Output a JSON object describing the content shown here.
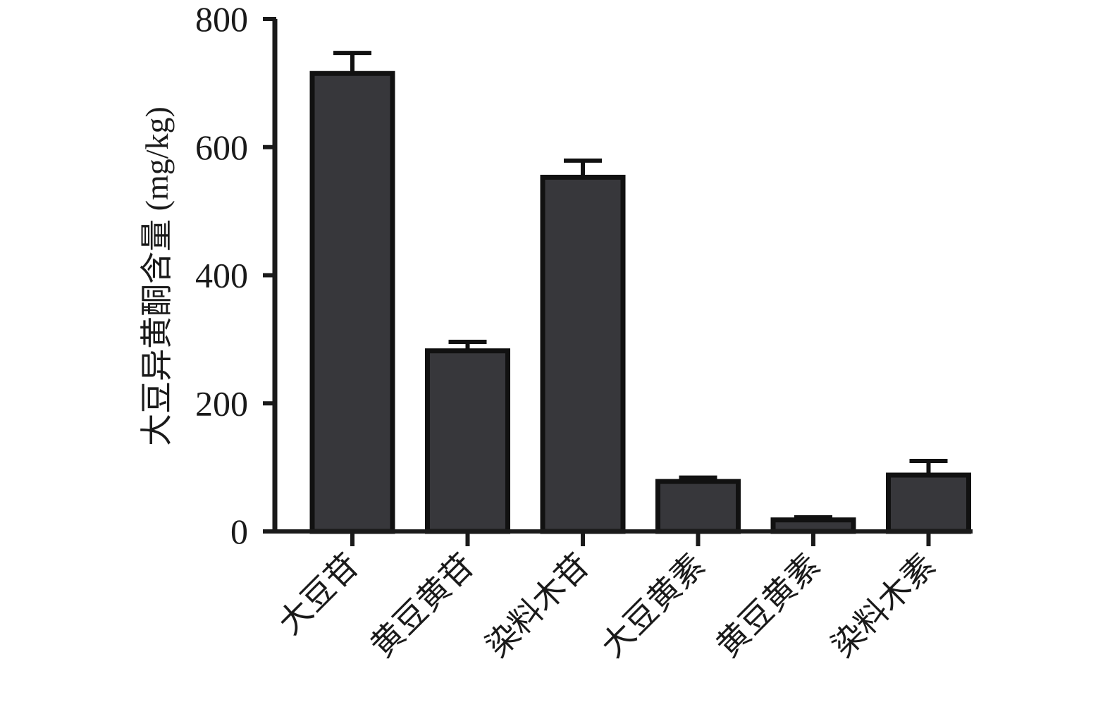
{
  "chart_data": {
    "type": "bar",
    "title": "",
    "xlabel": "",
    "ylabel": "大豆异黄酮含量 (mg/kg)",
    "categories": [
      "大豆苷",
      "黄豆黄苷",
      "染料木苷",
      "大豆黄素",
      "黄豆黄素",
      "染料木素"
    ],
    "series": [
      {
        "values": [
          715,
          282,
          553,
          78,
          18,
          88
        ],
        "errors": [
          32,
          14,
          26,
          6,
          4,
          22
        ]
      }
    ],
    "ylim": [
      0,
      800
    ],
    "yticks": [
      0,
      200,
      400,
      600,
      800
    ],
    "yticks_text": [
      "0",
      "200",
      "400",
      "600",
      "800"
    ],
    "grid": false,
    "legend": "none",
    "colors": {
      "bar_fill": "#37373b",
      "bar_stroke": "#111111",
      "axis": "#1a1a1a"
    }
  }
}
